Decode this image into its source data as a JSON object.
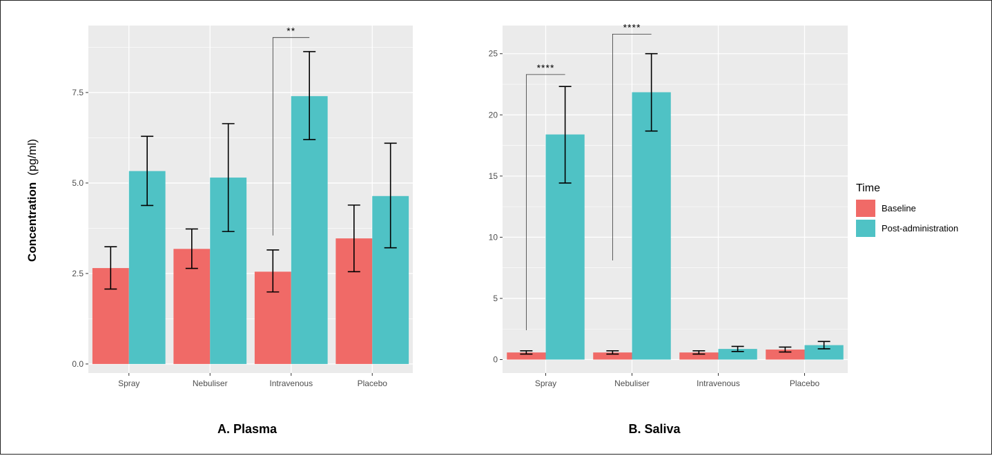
{
  "y_axis_label": {
    "bold": "Concentration",
    "unit": "(pg/ml)"
  },
  "legend": {
    "title": "Time",
    "entries": [
      {
        "name": "Baseline",
        "color": "#F06A67"
      },
      {
        "name": "Post-administration",
        "color": "#4FC2C5"
      }
    ]
  },
  "chart_data": [
    {
      "type": "bar",
      "panel_label": "A. Plasma",
      "categories": [
        "Spray",
        "Nebuliser",
        "Intravenous",
        "Placebo"
      ],
      "ylim": [
        -0.25,
        9.35
      ],
      "yticks": [
        0.0,
        2.5,
        5.0,
        7.5
      ],
      "ytick_labels": [
        "0.0",
        "2.5",
        "5.0",
        "7.5"
      ],
      "grid": true,
      "series": [
        {
          "name": "Baseline",
          "values": [
            2.65,
            3.18,
            2.55,
            3.47
          ],
          "err_low": [
            2.07,
            2.64,
            1.99,
            2.55
          ],
          "err_high": [
            3.24,
            3.73,
            3.15,
            4.39
          ]
        },
        {
          "name": "Post-administration",
          "values": [
            5.33,
            5.15,
            7.4,
            4.64
          ],
          "err_low": [
            4.38,
            3.66,
            6.2,
            3.21
          ],
          "err_high": [
            6.29,
            6.64,
            8.63,
            6.1
          ]
        }
      ],
      "significance": [
        {
          "label": "**",
          "category": "Intravenous",
          "left_y": 3.55,
          "right_y": 9.02,
          "top_y": 9.02
        }
      ]
    },
    {
      "type": "bar",
      "panel_label": "B. Saliva",
      "categories": [
        "Spray",
        "Nebuliser",
        "Intravenous",
        "Placebo"
      ],
      "ylim": [
        -1.1,
        27.3
      ],
      "yticks": [
        0,
        5,
        10,
        15,
        20,
        25
      ],
      "ytick_labels": [
        "0",
        "5",
        "10",
        "15",
        "20",
        "25"
      ],
      "grid": true,
      "series": [
        {
          "name": "Baseline",
          "values": [
            0.58,
            0.58,
            0.58,
            0.82
          ],
          "err_low": [
            0.45,
            0.45,
            0.45,
            0.62
          ],
          "err_high": [
            0.72,
            0.72,
            0.72,
            1.02
          ]
        },
        {
          "name": "Post-administration",
          "values": [
            18.4,
            21.85,
            0.87,
            1.18
          ],
          "err_low": [
            14.43,
            18.68,
            0.66,
            0.88
          ],
          "err_high": [
            22.32,
            25.0,
            1.08,
            1.48
          ]
        }
      ],
      "significance": [
        {
          "label": "****",
          "category": "Spray",
          "left_y": 2.4,
          "right_y": 23.3,
          "top_y": 23.3
        },
        {
          "label": "****",
          "category": "Nebuliser",
          "left_y": 8.1,
          "right_y": 26.6,
          "top_y": 26.6
        }
      ]
    }
  ]
}
